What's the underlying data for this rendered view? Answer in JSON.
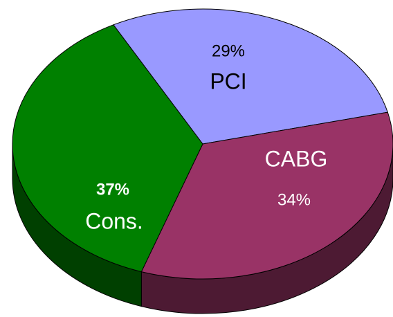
{
  "chart_data": {
    "type": "pie",
    "categories": [
      "PCI",
      "CABG",
      "Cons."
    ],
    "values": [
      29,
      34,
      37
    ],
    "value_labels": [
      "29%",
      "34%",
      "37%"
    ],
    "colors": [
      "#9999ff",
      "#993366",
      "#008000"
    ]
  }
}
